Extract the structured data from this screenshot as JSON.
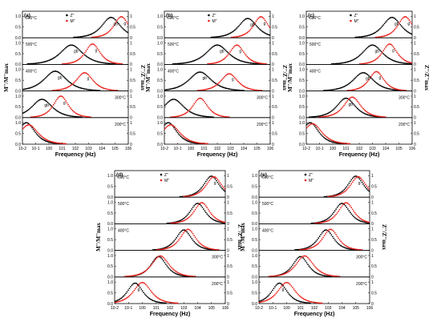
{
  "colors": {
    "z": "#000000",
    "m": "#e8201a"
  },
  "chart_data": [
    {
      "type": "line",
      "panel_label": "(a)",
      "xlabel": "Frequency (Hz)",
      "ylabel_left": "M''/M''max",
      "ylabel_right": "Z''/Z''max",
      "x_scale": "log",
      "xlim": [
        0.01,
        1000000
      ],
      "ylim_each_strip": [
        0,
        1.2
      ],
      "x_ticks": [
        "10-2",
        "10-1",
        "100",
        "101",
        "102",
        "103",
        "104",
        "105",
        "106"
      ],
      "legend": [
        "Z''",
        "M''"
      ],
      "strips": [
        {
          "temp_label": "600°C",
          "z_peaks": [
            {
              "x": 50000,
              "h": 0.95,
              "w": 1.0,
              "label": "gb"
            }
          ],
          "m_peaks": [
            {
              "x": 300000,
              "h": 0.98,
              "w": 0.8,
              "label": "g"
            }
          ],
          "peak_labels": [
            "gb",
            "g"
          ]
        },
        {
          "temp_label": "500°C",
          "z_peaks": [
            {
              "x": 50,
              "h": 0.9,
              "w": 1.2,
              "label": "gb"
            }
          ],
          "m_peaks": [
            {
              "x": 2000,
              "h": 0.95,
              "w": 0.8,
              "label": "g"
            }
          ],
          "peak_labels": []
        },
        {
          "temp_label": "400°C",
          "z_peaks": [
            {
              "x": 3,
              "h": 0.92,
              "w": 1.2,
              "label": "gb"
            }
          ],
          "m_peaks": [
            {
              "x": 500,
              "h": 0.85,
              "w": 0.9,
              "label": "g"
            }
          ],
          "peak_labels": [
            "gb",
            "g"
          ]
        },
        {
          "temp_label": "300°C",
          "z_peaks": [
            {
              "x": 0.3,
              "h": 0.85,
              "w": 1.1,
              "label": "gb"
            }
          ],
          "m_peaks": [
            {
              "x": 8,
              "h": 1.0,
              "w": 0.8,
              "label": "g"
            }
          ],
          "peak_labels": [
            "gb",
            "g"
          ]
        },
        {
          "temp_label": "200°C",
          "z_peaks": [
            {
              "x": 0.02,
              "h": 1.0,
              "w": 0.9,
              "label": ""
            }
          ],
          "m_peaks": [
            {
              "x": 0.03,
              "h": 0.9,
              "w": 1.0,
              "label": ""
            }
          ],
          "peak_labels": []
        }
      ]
    },
    {
      "type": "line",
      "panel_label": "(b)",
      "xlabel": "Frequency (Hz)",
      "ylabel_left": "M''/M''max",
      "ylabel_right": "Z''/Z''max",
      "x_scale": "log",
      "xlim": [
        0.01,
        1000000
      ],
      "ylim_each_strip": [
        0,
        1.2
      ],
      "x_ticks": [
        "10-2",
        "10-1",
        "100",
        "101",
        "102",
        "103",
        "104",
        "105",
        "106"
      ],
      "legend": [
        "Z''",
        "M''"
      ],
      "strips": [
        {
          "temp_label": "600°C",
          "z_peaks": [
            {
              "x": 20000,
              "h": 0.9,
              "w": 1.0,
              "label": "gb"
            }
          ],
          "m_peaks": [
            {
              "x": 200000,
              "h": 0.98,
              "w": 0.8,
              "label": "g"
            }
          ],
          "peak_labels": [
            "gb",
            "g"
          ]
        },
        {
          "temp_label": "500°C",
          "z_peaks": [
            {
              "x": 100,
              "h": 0.9,
              "w": 1.2,
              "label": "gb"
            }
          ],
          "m_peaks": [
            {
              "x": 3000,
              "h": 0.9,
              "w": 0.8,
              "label": "g"
            }
          ],
          "peak_labels": []
        },
        {
          "temp_label": "400°C",
          "z_peaks": [
            {
              "x": 5,
              "h": 0.88,
              "w": 1.2,
              "label": "gb"
            }
          ],
          "m_peaks": [
            {
              "x": 800,
              "h": 0.8,
              "w": 0.9,
              "label": "g"
            }
          ],
          "peak_labels": [
            "gb",
            "g"
          ]
        },
        {
          "temp_label": "300°C",
          "z_peaks": [
            {
              "x": 0.05,
              "h": 0.85,
              "w": 1.1,
              "label": ""
            }
          ],
          "m_peaks": [
            {
              "x": 5,
              "h": 0.9,
              "w": 0.8,
              "label": ""
            }
          ],
          "peak_labels": []
        },
        {
          "temp_label": "200°C",
          "z_peaks": [
            {
              "x": 0.02,
              "h": 1.0,
              "w": 0.9,
              "label": ""
            }
          ],
          "m_peaks": [
            {
              "x": 0.03,
              "h": 0.9,
              "w": 1.0,
              "label": ""
            }
          ],
          "peak_labels": []
        }
      ]
    },
    {
      "type": "line",
      "panel_label": "(c)",
      "xlabel": "Frequency (Hz)",
      "ylabel_left": "M''/M''max",
      "ylabel_right": "Z''/Z''max",
      "x_scale": "log",
      "xlim": [
        0.01,
        1000000
      ],
      "ylim_each_strip": [
        0,
        1.2
      ],
      "x_ticks": [
        "10-2",
        "10-1",
        "100",
        "101",
        "102",
        "103",
        "104",
        "105",
        "106"
      ],
      "legend": [
        "Z''",
        "M''"
      ],
      "strips": [
        {
          "temp_label": "600°C",
          "z_peaks": [
            {
              "x": 30000,
              "h": 0.95,
              "w": 1.0,
              "label": "gb"
            }
          ],
          "m_peaks": [
            {
              "x": 300000,
              "h": 0.98,
              "w": 0.8,
              "label": "g"
            }
          ],
          "peak_labels": [
            "gb",
            "g"
          ]
        },
        {
          "temp_label": "500°C",
          "z_peaks": [
            {
              "x": 1000,
              "h": 0.9,
              "w": 1.1,
              "label": "gb"
            }
          ],
          "m_peaks": [
            {
              "x": 20000,
              "h": 0.95,
              "w": 0.8,
              "label": "g"
            }
          ],
          "peak_labels": [
            "gb",
            "g"
          ]
        },
        {
          "temp_label": "400°C",
          "z_peaks": [
            {
              "x": 200,
              "h": 0.85,
              "w": 1.1,
              "label": "gb"
            }
          ],
          "m_peaks": [
            {
              "x": 2000,
              "h": 0.9,
              "w": 0.8,
              "label": "g"
            }
          ],
          "peak_labels": [
            "gb",
            "g"
          ]
        },
        {
          "temp_label": "300°C",
          "z_peaks": [
            {
              "x": 10,
              "h": 0.9,
              "w": 1.0,
              "label": "gb"
            }
          ],
          "m_peaks": [
            {
              "x": 30,
              "h": 0.95,
              "w": 0.9,
              "label": ""
            }
          ],
          "peak_labels": [
            "gb"
          ]
        },
        {
          "temp_label": "200°C",
          "z_peaks": [
            {
              "x": 0.02,
              "h": 1.0,
              "w": 0.9,
              "label": ""
            }
          ],
          "m_peaks": [
            {
              "x": 0.03,
              "h": 0.95,
              "w": 1.0,
              "label": ""
            }
          ],
          "peak_labels": []
        }
      ]
    },
    {
      "type": "line",
      "panel_label": "(d)",
      "xlabel": "Frequency (Hz)",
      "ylabel_left": "M''/M''max",
      "ylabel_right": "Z''/Z''max",
      "x_scale": "log",
      "xlim": [
        0.01,
        1000000
      ],
      "ylim_each_strip": [
        0,
        1.2
      ],
      "x_ticks": [
        "10-2",
        "10-1",
        "100",
        "101",
        "102",
        "103",
        "104",
        "105",
        "106"
      ],
      "legend": [
        "Z''",
        "M''"
      ],
      "strips": [
        {
          "temp_label": "600°C",
          "z_peaks": [
            {
              "x": 100000,
              "h": 0.98,
              "w": 0.8,
              "label": "g"
            }
          ],
          "m_peaks": [
            {
              "x": 150000,
              "h": 0.95,
              "w": 0.8,
              "label": ""
            }
          ],
          "peak_labels": [
            "g"
          ]
        },
        {
          "temp_label": "500°C",
          "z_peaks": [
            {
              "x": 10000,
              "h": 0.95,
              "w": 0.8,
              "label": ""
            }
          ],
          "m_peaks": [
            {
              "x": 20000,
              "h": 0.98,
              "w": 0.8,
              "label": ""
            }
          ],
          "peak_labels": []
        },
        {
          "temp_label": "400°C",
          "z_peaks": [
            {
              "x": 1000,
              "h": 0.95,
              "w": 0.8,
              "label": ""
            }
          ],
          "m_peaks": [
            {
              "x": 2000,
              "h": 0.98,
              "w": 0.8,
              "label": ""
            }
          ],
          "peak_labels": []
        },
        {
          "temp_label": "300°C",
          "z_peaks": [
            {
              "x": 15,
              "h": 0.95,
              "w": 0.8,
              "label": ""
            }
          ],
          "m_peaks": [
            {
              "x": 20,
              "h": 0.98,
              "w": 0.9,
              "label": ""
            }
          ],
          "peak_labels": []
        },
        {
          "temp_label": "200°C",
          "z_peaks": [
            {
              "x": 0.3,
              "h": 0.95,
              "w": 0.8,
              "label": "g"
            }
          ],
          "m_peaks": [
            {
              "x": 1,
              "h": 0.98,
              "w": 0.9,
              "label": ""
            }
          ],
          "peak_labels": [
            "g"
          ]
        }
      ]
    },
    {
      "type": "line",
      "panel_label": "(e)",
      "xlabel": "Frequency (Hz)",
      "ylabel_left": "M''/M''max",
      "ylabel_right": "Z''/Z''max",
      "x_scale": "log",
      "xlim": [
        0.01,
        1000000
      ],
      "ylim_each_strip": [
        0,
        1.2
      ],
      "x_ticks": [
        "10-2",
        "10-1",
        "100",
        "101",
        "102",
        "103",
        "104",
        "105",
        "106"
      ],
      "legend": [
        "Z''",
        "M''"
      ],
      "strips": [
        {
          "temp_label": "600°C",
          "z_peaks": [
            {
              "x": 100000,
              "h": 0.98,
              "w": 0.8,
              "label": "g"
            }
          ],
          "m_peaks": [
            {
              "x": 150000,
              "h": 0.95,
              "w": 0.8,
              "label": ""
            }
          ],
          "peak_labels": [
            "g"
          ]
        },
        {
          "temp_label": "500°C",
          "z_peaks": [
            {
              "x": 10000,
              "h": 0.95,
              "w": 0.8,
              "label": ""
            }
          ],
          "m_peaks": [
            {
              "x": 20000,
              "h": 0.98,
              "w": 0.8,
              "label": ""
            }
          ],
          "peak_labels": []
        },
        {
          "temp_label": "400°C",
          "z_peaks": [
            {
              "x": 700,
              "h": 0.95,
              "w": 0.8,
              "label": ""
            }
          ],
          "m_peaks": [
            {
              "x": 1500,
              "h": 0.98,
              "w": 0.8,
              "label": ""
            }
          ],
          "peak_labels": []
        },
        {
          "temp_label": "300°C",
          "z_peaks": [
            {
              "x": 10,
              "h": 0.95,
              "w": 0.8,
              "label": ""
            }
          ],
          "m_peaks": [
            {
              "x": 20,
              "h": 0.98,
              "w": 0.9,
              "label": ""
            }
          ],
          "peak_labels": []
        },
        {
          "temp_label": "200°C",
          "z_peaks": [
            {
              "x": 0.3,
              "h": 0.95,
              "w": 0.8,
              "label": "g"
            }
          ],
          "m_peaks": [
            {
              "x": 1,
              "h": 0.98,
              "w": 0.9,
              "label": ""
            }
          ],
          "peak_labels": [
            "g"
          ]
        }
      ]
    }
  ]
}
